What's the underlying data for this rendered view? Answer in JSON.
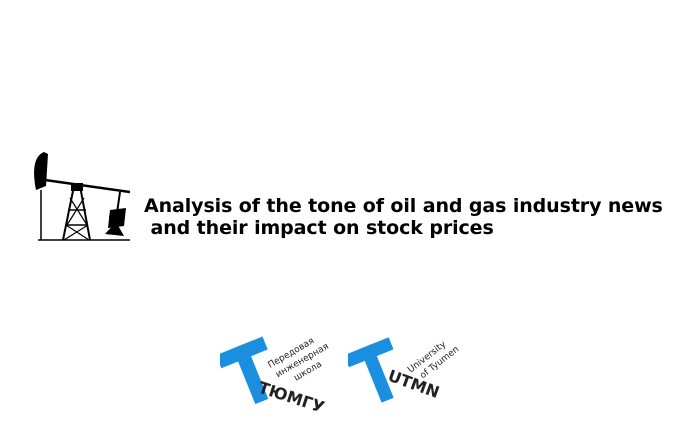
{
  "slide": {
    "title_line1": "Analysis of the tone of oil and gas industry news",
    "title_line2": " and their impact on stock prices"
  },
  "logos": {
    "school_line1": "Передовая",
    "school_line2": "инженерная",
    "school_line3": "школа",
    "school_name": "ТЮМГУ",
    "utmn_line1": "University",
    "utmn_line2": "of Tyumen",
    "utmn_name": "UTMN",
    "accent_color": "#1a8fe0"
  },
  "icons": {
    "title_icon": "oil-pumpjack-icon"
  }
}
